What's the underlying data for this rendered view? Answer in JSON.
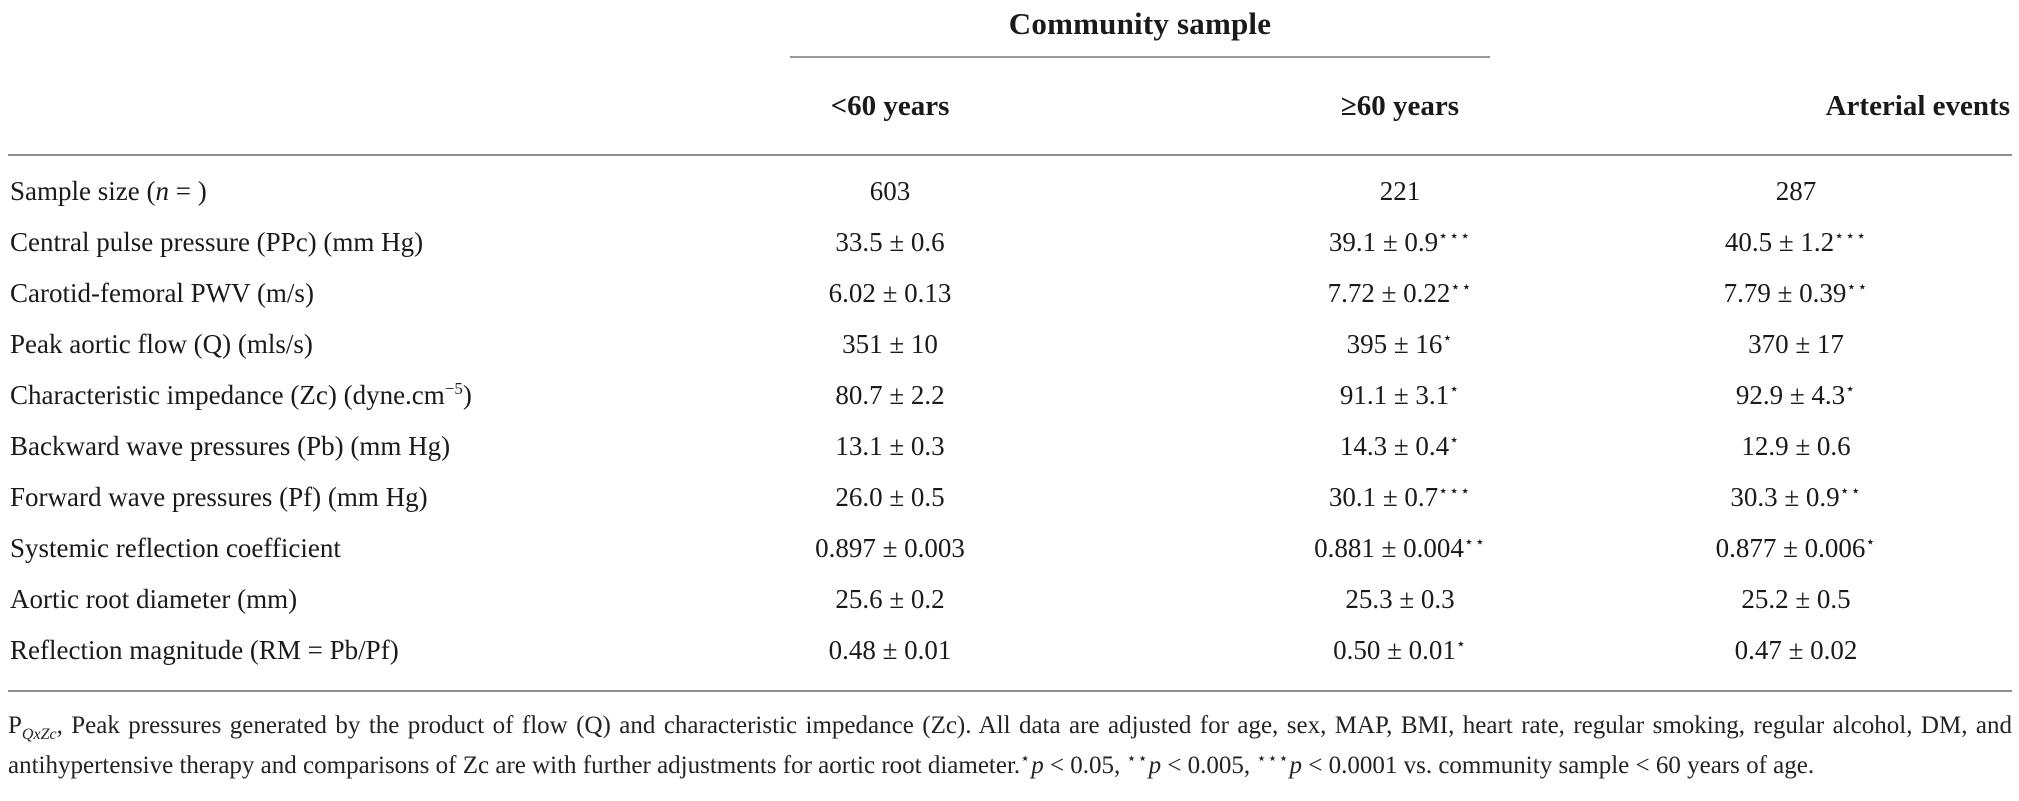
{
  "table": {
    "group_header": "Community sample",
    "columns": [
      "<60 years",
      "≥60 years",
      "Arterial events"
    ],
    "rows": [
      {
        "label": "Sample size (~n~ = )",
        "values": [
          "603",
          "221",
          "287"
        ]
      },
      {
        "label": "Central pulse pressure (PPc) (mm Hg)",
        "values": [
          "33.5 ± 0.6",
          "39.1 ± 0.9***",
          "40.5 ± 1.2***"
        ]
      },
      {
        "label": "Carotid-femoral PWV (m/s)",
        "values": [
          "6.02 ± 0.13",
          "7.72 ± 0.22**",
          "7.79 ± 0.39**"
        ]
      },
      {
        "label": "Peak aortic flow (Q) (mls/s)",
        "values": [
          "351 ± 10",
          "395 ± 16*",
          "370 ± 17"
        ]
      },
      {
        "label": "Characteristic impedance (Zc) (dyne.cm^−5^)",
        "values": [
          "80.7 ± 2.2",
          "91.1 ± 3.1*",
          "92.9 ± 4.3*"
        ]
      },
      {
        "label": "Backward wave pressures (Pb) (mm Hg)",
        "values": [
          "13.1 ± 0.3",
          "14.3 ± 0.4*",
          "12.9 ± 0.6"
        ]
      },
      {
        "label": "Forward wave pressures (Pf) (mm Hg)",
        "values": [
          "26.0 ± 0.5",
          "30.1 ± 0.7***",
          "30.3 ± 0.9**"
        ]
      },
      {
        "label": "Systemic reflection coefficient",
        "values": [
          "0.897 ± 0.003",
          "0.881 ± 0.004**",
          "0.877 ± 0.006*"
        ]
      },
      {
        "label": "Aortic root diameter (mm)",
        "values": [
          "25.6 ± 0.2",
          "25.3 ± 0.3",
          "25.2 ± 0.5"
        ]
      },
      {
        "label": "Reflection magnitude (RM = Pb/Pf)",
        "values": [
          "0.48 ± 0.01",
          "0.50 ± 0.01*",
          "0.47 ± 0.02"
        ]
      }
    ]
  },
  "footnote": {
    "term": "P",
    "term_sub": "QxZc",
    "body": ", Peak pressures generated by the product of flow (Q) and characteristic impedance (Zc). All data are adjusted for age, sex, MAP, BMI, heart rate, regular smoking, regular alcohol, DM, and antihypertensive therapy and comparisons of Zc are with further adjustments for aortic root diameter.",
    "significance": [
      {
        "stars": "*",
        "var": "p",
        "text": " < 0.05, "
      },
      {
        "stars": "**",
        "var": "p",
        "text": " < 0.005, "
      },
      {
        "stars": "***",
        "var": "p",
        "text": " < 0.0001 vs. community sample < 60 years of age."
      }
    ]
  },
  "colors": {
    "text": "#1a1a1a",
    "rule": "#8f8f8f",
    "background": "#ffffff"
  }
}
